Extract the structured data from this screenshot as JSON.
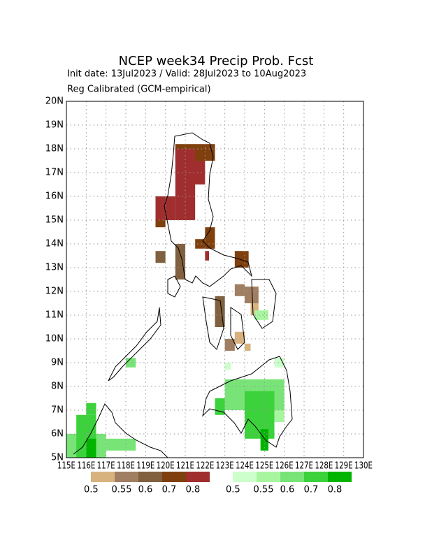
{
  "chart_data": {
    "type": "map",
    "title": "NCEP week34 Precip Prob. Fcst",
    "subtitle": "Init date: 13Jul2023 / Valid: 28Jul2023 to 10Aug2023",
    "note": "Reg Calibrated (GCM-empirical)",
    "xlim": [
      115,
      130
    ],
    "ylim": [
      5,
      20
    ],
    "xticks": [
      {
        "value": 115,
        "label": "115E"
      },
      {
        "value": 116,
        "label": "116E"
      },
      {
        "value": 117,
        "label": "117E"
      },
      {
        "value": 118,
        "label": "118E"
      },
      {
        "value": 119,
        "label": "119E"
      },
      {
        "value": 120,
        "label": "120E"
      },
      {
        "value": 121,
        "label": "121E"
      },
      {
        "value": 122,
        "label": "122E"
      },
      {
        "value": 123,
        "label": "123E"
      },
      {
        "value": 124,
        "label": "124E"
      },
      {
        "value": 125,
        "label": "125E"
      },
      {
        "value": 126,
        "label": "126E"
      },
      {
        "value": 127,
        "label": "127E"
      },
      {
        "value": 128,
        "label": "128E"
      },
      {
        "value": 129,
        "label": "129E"
      },
      {
        "value": 130,
        "label": "130E"
      }
    ],
    "yticks": [
      {
        "value": 5,
        "label": "5N"
      },
      {
        "value": 6,
        "label": "6N"
      },
      {
        "value": 7,
        "label": "7N"
      },
      {
        "value": 8,
        "label": "8N"
      },
      {
        "value": 9,
        "label": "9N"
      },
      {
        "value": 10,
        "label": "10N"
      },
      {
        "value": 11,
        "label": "11N"
      },
      {
        "value": 12,
        "label": "12N"
      },
      {
        "value": 13,
        "label": "13N"
      },
      {
        "value": 14,
        "label": "14N"
      },
      {
        "value": 15,
        "label": "15N"
      },
      {
        "value": 16,
        "label": "16N"
      },
      {
        "value": 17,
        "label": "17N"
      },
      {
        "value": 18,
        "label": "18N"
      },
      {
        "value": 19,
        "label": "19N"
      },
      {
        "value": 20,
        "label": "20N"
      }
    ],
    "grid": true,
    "legends": [
      {
        "colors": [
          "#d8b27e",
          "#a07e62",
          "#80603e",
          "#80400e",
          "#a02e2e"
        ],
        "labels": [
          0.5,
          0.55,
          0.6,
          0.7,
          0.8
        ]
      },
      {
        "colors": [
          "#ccffcc",
          "#a8f5a0",
          "#78e478",
          "#3cd23c",
          "#00b400"
        ],
        "labels": [
          0.5,
          0.55,
          0.6,
          0.7,
          0.8
        ]
      }
    ],
    "series": [
      {
        "legend": 0,
        "cells": [
          [
            120.5,
            17.5,
            122.5,
            18.2,
            0.7
          ],
          [
            119.5,
            14.7,
            120.0,
            16.0,
            0.7
          ],
          [
            122.0,
            13.8,
            122.5,
            14.7,
            0.7
          ],
          [
            123.5,
            13.0,
            124.2,
            13.7,
            0.7
          ],
          [
            121.5,
            13.8,
            122.5,
            14.2,
            0.7
          ],
          [
            120.5,
            15.0,
            121.5,
            18.0,
            0.8
          ],
          [
            119.5,
            15.0,
            120.5,
            16.0,
            0.8
          ],
          [
            121.0,
            16.5,
            122.0,
            17.5,
            0.8
          ],
          [
            122.0,
            13.3,
            122.2,
            13.7,
            0.8
          ],
          [
            122.5,
            10.5,
            123.0,
            11.8,
            0.6
          ],
          [
            120.5,
            12.5,
            121.0,
            14.0,
            0.6
          ],
          [
            119.5,
            13.2,
            120.0,
            13.7,
            0.6
          ],
          [
            124.0,
            11.5,
            124.7,
            12.2,
            0.55
          ],
          [
            123.0,
            9.5,
            123.5,
            10.0,
            0.55
          ],
          [
            123.5,
            11.8,
            124.0,
            12.3,
            0.55
          ],
          [
            123.5,
            9.8,
            124.0,
            10.3,
            0.5
          ],
          [
            124.3,
            11.0,
            124.7,
            11.5,
            0.5
          ],
          [
            124.0,
            9.5,
            124.3,
            9.8,
            0.5
          ]
        ]
      },
      {
        "legend": 1,
        "cells": [
          [
            123.0,
            8.7,
            123.3,
            9.0,
            0.5
          ],
          [
            125.5,
            8.8,
            126.0,
            9.2,
            0.5
          ],
          [
            124.5,
            10.8,
            125.2,
            11.2,
            0.55
          ],
          [
            125.5,
            6.5,
            126.0,
            7.5,
            0.55
          ],
          [
            123.0,
            7.0,
            126.0,
            8.3,
            0.6
          ],
          [
            118.0,
            8.8,
            118.5,
            9.2,
            0.6
          ],
          [
            115.0,
            5.0,
            117.0,
            6.0,
            0.6
          ],
          [
            117.0,
            5.3,
            118.5,
            5.8,
            0.6
          ],
          [
            115.5,
            5.0,
            116.5,
            6.8,
            0.7
          ],
          [
            124.0,
            5.8,
            125.5,
            7.8,
            0.7
          ],
          [
            122.5,
            6.8,
            123.0,
            7.5,
            0.7
          ],
          [
            116.0,
            6.8,
            116.5,
            7.3,
            0.7
          ],
          [
            116.0,
            5.0,
            116.5,
            5.8,
            0.8
          ],
          [
            124.8,
            5.3,
            125.2,
            6.2,
            0.8
          ]
        ]
      }
    ]
  }
}
